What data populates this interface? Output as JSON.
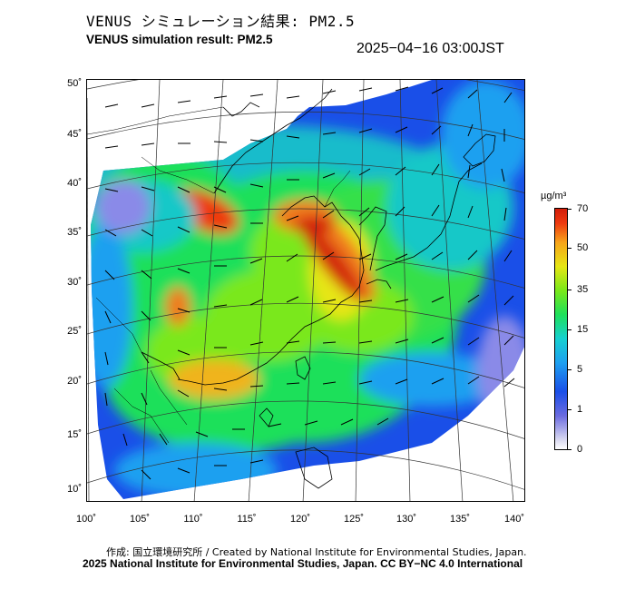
{
  "header": {
    "title_jp": "VENUS シミュレーション結果: PM2.5",
    "title_en": "VENUS simulation result: PM2.5",
    "timestamp": "2025−04−16 03:00JST"
  },
  "map": {
    "latitude_labels": [
      "50˚",
      "45˚",
      "40˚",
      "35˚",
      "30˚",
      "25˚",
      "20˚",
      "15˚",
      "10˚"
    ],
    "longitude_labels": [
      "100˚",
      "105˚",
      "110˚",
      "115˚",
      "120˚",
      "125˚",
      "130˚",
      "135˚",
      "140˚"
    ],
    "colors": {
      "very_high": "#d21e0a",
      "high": "#f7a41a",
      "moderate": "#7ae81a",
      "low": "#1ee05a",
      "background": "#1a4fe8"
    }
  },
  "colorbar": {
    "unit": "µg/m³",
    "ticks": [
      "70",
      "50",
      "35",
      "15",
      "5",
      "1",
      "0"
    ]
  },
  "footer": {
    "credit": "作成: 国立環境研究所 / Created by National Institute for Environmental Studies, Japan.",
    "license": "2025 National Institute for Environmental Studies, Japan. CC BY−NC 4.0 International"
  }
}
